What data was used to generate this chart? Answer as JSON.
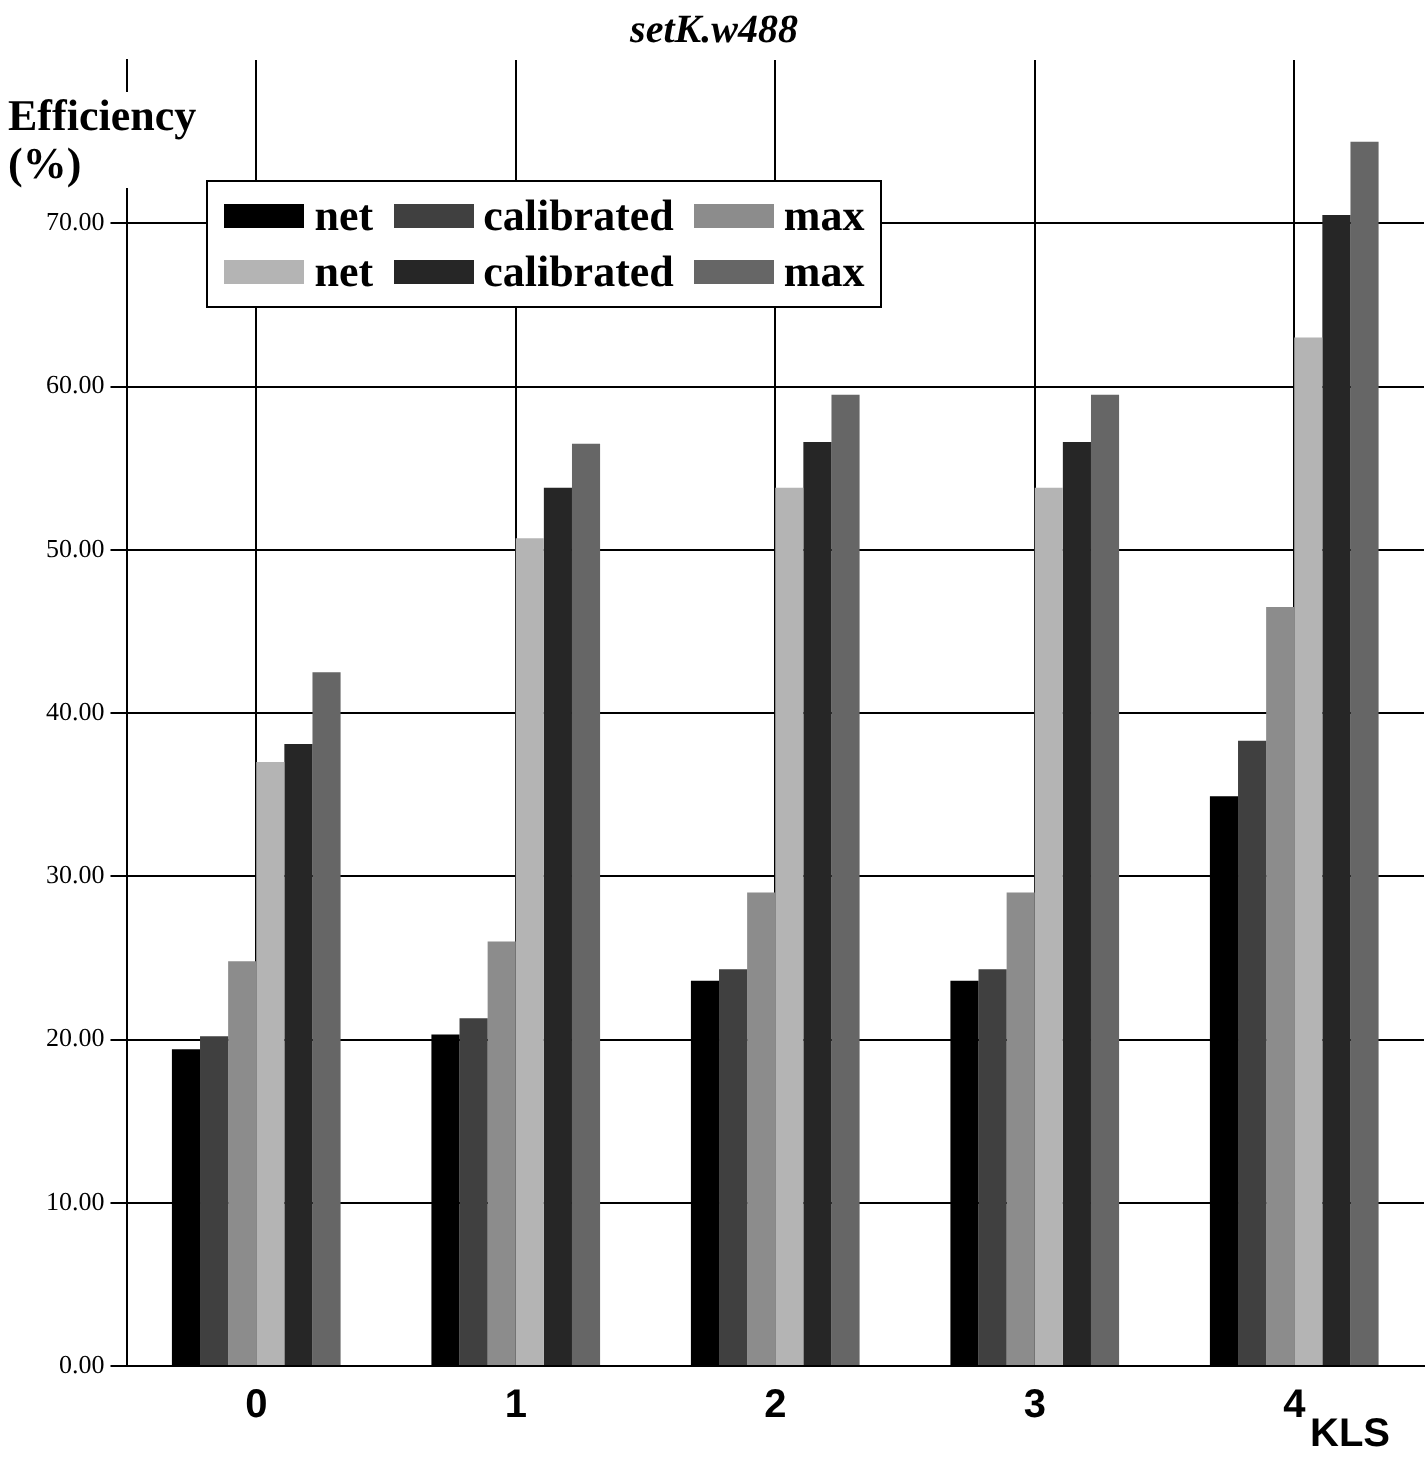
{
  "chart_data": {
    "type": "bar",
    "title": "setK.w488",
    "xlabel": "KLS",
    "ylabel": "Efficiency\n(%)",
    "categories": [
      "0",
      "1",
      "2",
      "3",
      "4"
    ],
    "series": [
      {
        "name": "net",
        "color": "#000000",
        "values": [
          19.4,
          20.3,
          23.6,
          23.6,
          34.9
        ]
      },
      {
        "name": "calibrated",
        "color": "#404040",
        "values": [
          20.2,
          21.3,
          24.3,
          24.3,
          38.3
        ]
      },
      {
        "name": "max",
        "color": "#8c8c8c",
        "values": [
          24.8,
          26,
          29,
          29,
          46.5
        ]
      },
      {
        "name": "net",
        "color": "#b4b4b4",
        "values": [
          37,
          50.7,
          53.8,
          53.8,
          63
        ]
      },
      {
        "name": "calibrated",
        "color": "#262626",
        "values": [
          38.1,
          53.8,
          56.6,
          56.6,
          70.5
        ]
      },
      {
        "name": "max",
        "color": "#666666",
        "values": [
          42.5,
          56.5,
          59.5,
          59.5,
          75
        ]
      }
    ],
    "ylim": [
      0,
      80
    ],
    "yticks": [
      {
        "value": 0,
        "label": "0.00"
      },
      {
        "value": 10,
        "label": "10.00"
      },
      {
        "value": 20,
        "label": "20.00"
      },
      {
        "value": 30,
        "label": "30.00"
      },
      {
        "value": 40,
        "label": "40.00"
      },
      {
        "value": 50,
        "label": "50.00"
      },
      {
        "value": 60,
        "label": "60.00"
      },
      {
        "value": 70,
        "label": "70.00"
      }
    ],
    "grid": true,
    "legend": "top left"
  }
}
